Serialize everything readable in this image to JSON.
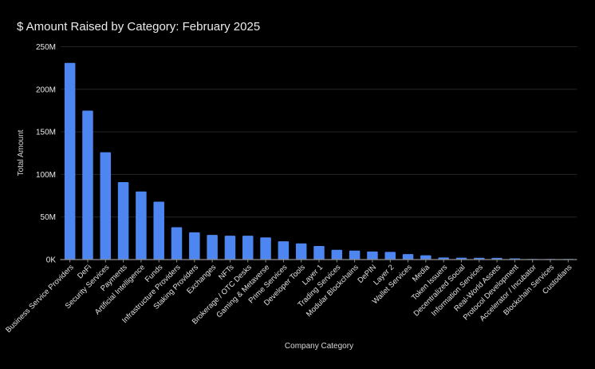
{
  "chart_data": {
    "type": "bar",
    "title": "$ Amount Raised by Category: February 2025",
    "xlabel": "Company Category",
    "ylabel": "Total Amount",
    "unit": "USD millions (read from axis)",
    "ylim_millions": [
      0,
      250
    ],
    "y_ticks_millions": [
      0,
      50,
      100,
      150,
      200,
      250
    ],
    "y_tick_labels": [
      "0K",
      "50M",
      "100M",
      "150M",
      "200M",
      "250M"
    ],
    "legend": "none",
    "grid": "horizontal",
    "categories": [
      "Business Service Providers",
      "DeFi",
      "Security Services",
      "Payments",
      "Artificial Intelligence",
      "Funds",
      "Infrastructure Providers",
      "Staking Providers",
      "Exchanges",
      "NFTs",
      "Brokerage / OTC Desks",
      "Gaming & Metaverse",
      "Prime Services",
      "Developer Tools",
      "Layer 1",
      "Trading Services",
      "Modular Blockchains",
      "DePIN",
      "Layer 2",
      "Wallet Services",
      "Media",
      "Token Issuers",
      "Decentralized Social",
      "Information Services",
      "Real-World Assets",
      "Protocol Development",
      "Accelerator / Incubator",
      "Blockchain Services",
      "Custodians"
    ],
    "values_millions": [
      231,
      175,
      126,
      91,
      80,
      68,
      38,
      32,
      29,
      28,
      28,
      26,
      21.5,
      19,
      16,
      11.5,
      10.5,
      9.5,
      9,
      6.5,
      5,
      2.5,
      2.2,
      2.1,
      2,
      1.4,
      0.4,
      0.25,
      0.15
    ]
  },
  "style": {
    "background": "#000000",
    "bar_color": "#4d86f0",
    "grid_color": "#242424",
    "axis_line_color": "#8f8f8f",
    "tick_mark_color": "#8f8f8f",
    "title_color": "#ececec",
    "tick_label_color": "#e8e8e8",
    "axis_title_color": "#d9d9d9"
  }
}
